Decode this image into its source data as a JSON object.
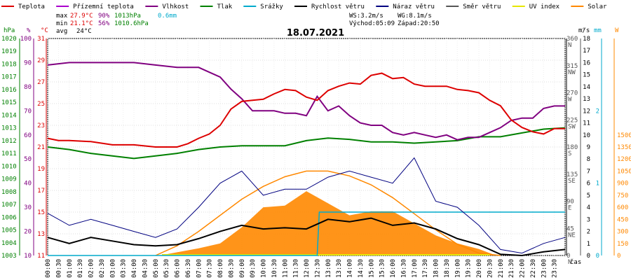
{
  "chart_data": {
    "type": "line",
    "date": "18.07.2021",
    "legend": [
      {
        "key": "teplota",
        "label": "Teplota",
        "color": "#dd0000"
      },
      {
        "key": "prizemni",
        "label": "Přízemní teplota",
        "color": "#aa00cc"
      },
      {
        "key": "vlhkost",
        "label": "Vlhkost",
        "color": "#800080"
      },
      {
        "key": "tlak",
        "label": "Tlak",
        "color": "#008000"
      },
      {
        "key": "srazky",
        "label": "Srážky",
        "color": "#00aacc"
      },
      {
        "key": "rychlost",
        "label": "Rychlost větru",
        "color": "#000000"
      },
      {
        "key": "naraz",
        "label": "Náraz větru",
        "color": "#000080"
      },
      {
        "key": "smer",
        "label": "Směr větru",
        "color": "#555555"
      },
      {
        "key": "uv",
        "label": "UV index",
        "color": "#e6e600"
      },
      {
        "key": "solar",
        "label": "Solar",
        "color": "#ff8800"
      }
    ],
    "stats": {
      "max_label": "max",
      "max_temp": "27.9°C",
      "max_hum": "90%",
      "max_press": "1013hPa",
      "min_label": "min",
      "min_temp": "21.1°C",
      "min_hum": "56%",
      "min_press": "1010.6hPa",
      "avg_label": "avg",
      "avg_temp": "24°C",
      "rain": "0.6mm",
      "ws": "WS:3.2m/s",
      "wg": "WG:8.1m/s",
      "sunrise": "Východ:05:09",
      "sunset": "Západ:20:50"
    },
    "axes": {
      "hpa_title": "hPa",
      "pct_title": "%",
      "c_title": "°C",
      "deg_title": "°",
      "ms_title": "m/s",
      "mm_title": "mm",
      "w_title": "W",
      "hpa_ticks": [
        "1003",
        "1004",
        "1005",
        "1006",
        "1007",
        "1008",
        "1009",
        "1010",
        "1011",
        "1012",
        "1013",
        "1014",
        "1015",
        "1016",
        "1017",
        "1018",
        "1019",
        "1020"
      ],
      "pct_ticks": [
        "10",
        "20",
        "30",
        "40",
        "50",
        "60",
        "70",
        "80",
        "90",
        "100"
      ],
      "c_ticks": [
        "11",
        "13",
        "15",
        "17",
        "19",
        "21",
        "23",
        "25",
        "27",
        "29",
        "31"
      ],
      "deg_ticks": [
        "0",
        "45",
        "90",
        "135",
        "180",
        "225",
        "270",
        "315",
        "360"
      ],
      "dir_labels": [
        "N",
        "NE",
        "E",
        "SE",
        "S",
        "SW",
        "W",
        "NW",
        "N"
      ],
      "ms_ticks": [
        "0",
        "1",
        "2",
        "3",
        "4",
        "5",
        "6",
        "7",
        "8",
        "9",
        "10",
        "11",
        "12",
        "13",
        "14",
        "15",
        "16",
        "17",
        "18"
      ],
      "mm_ticks": [
        "0",
        "1",
        "2"
      ],
      "w_ticks": [
        "0",
        "150",
        "300",
        "450",
        "600",
        "750",
        "900",
        "1050",
        "1200",
        "1350",
        "1500"
      ],
      "w_ticks_shown": [
        "0",
        "150",
        "300",
        "450",
        "600",
        "750",
        "900",
        "1050",
        "1200",
        "1350",
        "1500"
      ],
      "x_ticks": [
        "00:00",
        "00:30",
        "01:00",
        "01:30",
        "02:00",
        "02:30",
        "03:00",
        "03:30",
        "04:00",
        "04:30",
        "05:00",
        "05:30",
        "06:00",
        "06:30",
        "07:00",
        "07:30",
        "08:00",
        "08:30",
        "09:00",
        "09:30",
        "10:00",
        "10:30",
        "11:00",
        "11:30",
        "12:00",
        "12:30",
        "13:00",
        "13:30",
        "14:00",
        "14:30",
        "15:00",
        "15:30",
        "16:00",
        "16:30",
        "17:00",
        "17:30",
        "18:00",
        "18:30",
        "19:00",
        "19:30",
        "20:00",
        "20:30",
        "21:00",
        "21:30",
        "22:00",
        "22:30",
        "23:00",
        "23:30"
      ],
      "x_label": "čas"
    },
    "temperature": {
      "x": [
        0,
        0.5,
        1,
        2,
        3,
        4,
        5,
        6,
        6.5,
        7,
        7.5,
        8,
        8.5,
        9,
        9.5,
        10,
        10.5,
        11,
        11.5,
        12,
        12.5,
        13,
        13.5,
        14,
        14.5,
        15,
        15.5,
        16,
        16.5,
        17,
        17.5,
        18,
        18.5,
        19,
        19.5,
        20,
        20.5,
        21,
        21.5,
        22,
        22.5,
        23,
        23.5,
        24
      ],
      "y": [
        21.8,
        21.6,
        21.6,
        21.5,
        21.2,
        21.2,
        21.0,
        21.0,
        21.3,
        21.8,
        22.2,
        23.0,
        24.5,
        25.2,
        25.3,
        25.4,
        25.9,
        26.3,
        26.2,
        25.6,
        25.3,
        26.2,
        26.6,
        26.9,
        26.8,
        27.6,
        27.8,
        27.3,
        27.4,
        26.8,
        26.6,
        26.6,
        26.6,
        26.3,
        26.2,
        26.0,
        25.3,
        24.8,
        23.5,
        22.8,
        22.4,
        22.2,
        22.7,
        22.7
      ]
    },
    "humidity": {
      "x": [
        0,
        1,
        2,
        3,
        4,
        5,
        6,
        7,
        7.5,
        8,
        8.5,
        9,
        9.5,
        10,
        10.5,
        11,
        11.5,
        12,
        12.5,
        13,
        13.5,
        14,
        14.5,
        15,
        15.5,
        16,
        16.5,
        17,
        17.5,
        18,
        18.5,
        19,
        19.5,
        20,
        20.5,
        21,
        21.5,
        22,
        22.5,
        23,
        23.5,
        24
      ],
      "y": [
        89,
        90,
        90,
        90,
        90,
        89,
        88,
        88,
        86,
        84,
        79,
        75,
        70,
        70,
        70,
        69,
        69,
        68,
        76,
        70,
        72,
        68,
        65,
        64,
        64,
        61,
        60,
        61,
        60,
        59,
        60,
        58,
        59,
        59,
        61,
        63,
        66,
        67,
        67,
        71,
        72,
        72
      ]
    },
    "pressure": {
      "x": [
        0,
        1,
        2,
        3,
        4,
        5,
        6,
        7,
        8,
        9,
        10,
        11,
        12,
        13,
        14,
        15,
        16,
        17,
        18,
        19,
        20,
        21,
        22,
        23,
        24
      ],
      "y": [
        1011.5,
        1011.3,
        1011.0,
        1010.8,
        1010.6,
        1010.8,
        1011.0,
        1011.3,
        1011.5,
        1011.6,
        1011.6,
        1011.6,
        1012.0,
        1012.2,
        1012.1,
        1011.9,
        1011.9,
        1011.8,
        1011.9,
        1012.0,
        1012.3,
        1012.3,
        1012.6,
        1012.9,
        1013.0
      ]
    },
    "rain_cumulative": {
      "x": [
        0,
        12.5,
        12.6,
        24
      ],
      "y": [
        0,
        0,
        0.6,
        0.6
      ]
    },
    "wind_speed": {
      "x": [
        0,
        1,
        2,
        3,
        4,
        5,
        6,
        7,
        8,
        9,
        10,
        11,
        12,
        13,
        14,
        15,
        16,
        17,
        18,
        19,
        20,
        21,
        22,
        23,
        24
      ],
      "y": [
        1.5,
        1.0,
        1.5,
        1.2,
        0.9,
        0.8,
        0.9,
        1.4,
        2.0,
        2.5,
        2.2,
        2.3,
        2.2,
        3.0,
        2.8,
        3.1,
        2.5,
        2.7,
        2.2,
        1.4,
        0.9,
        0.1,
        0.0,
        0.3,
        0.5
      ]
    },
    "wind_gust": {
      "x": [
        0,
        1,
        2,
        3,
        4,
        5,
        6,
        7,
        8,
        9,
        10,
        11,
        12,
        13,
        14,
        15,
        16,
        17,
        18,
        19,
        20,
        21,
        22,
        23,
        24
      ],
      "y": [
        3.5,
        2.5,
        3.0,
        2.5,
        2.0,
        1.5,
        2.2,
        4.0,
        6.0,
        7.0,
        5.0,
        5.5,
        5.5,
        6.5,
        7.0,
        6.5,
        6.0,
        8.1,
        4.5,
        4.0,
        2.5,
        0.5,
        0.2,
        1.0,
        1.5
      ]
    },
    "solar": {
      "x": [
        5.2,
        6,
        7,
        8,
        9,
        10,
        11,
        12,
        13,
        14,
        15,
        16,
        17,
        18,
        19,
        20,
        20.8
      ],
      "y": [
        0,
        40,
        90,
        150,
        350,
        600,
        620,
        800,
        650,
        500,
        550,
        550,
        400,
        250,
        150,
        80,
        0
      ]
    },
    "solar_theoretical": {
      "x": [
        5,
        6,
        7,
        8,
        9,
        10,
        11,
        12,
        13,
        14,
        15,
        16,
        17,
        18,
        19,
        20,
        21
      ],
      "y": [
        0,
        120,
        300,
        500,
        700,
        860,
        980,
        1050,
        1050,
        990,
        880,
        720,
        520,
        320,
        140,
        30,
        0
      ]
    },
    "uv": {
      "x": [
        5.3,
        20.5
      ],
      "y": [
        0,
        0
      ]
    }
  }
}
